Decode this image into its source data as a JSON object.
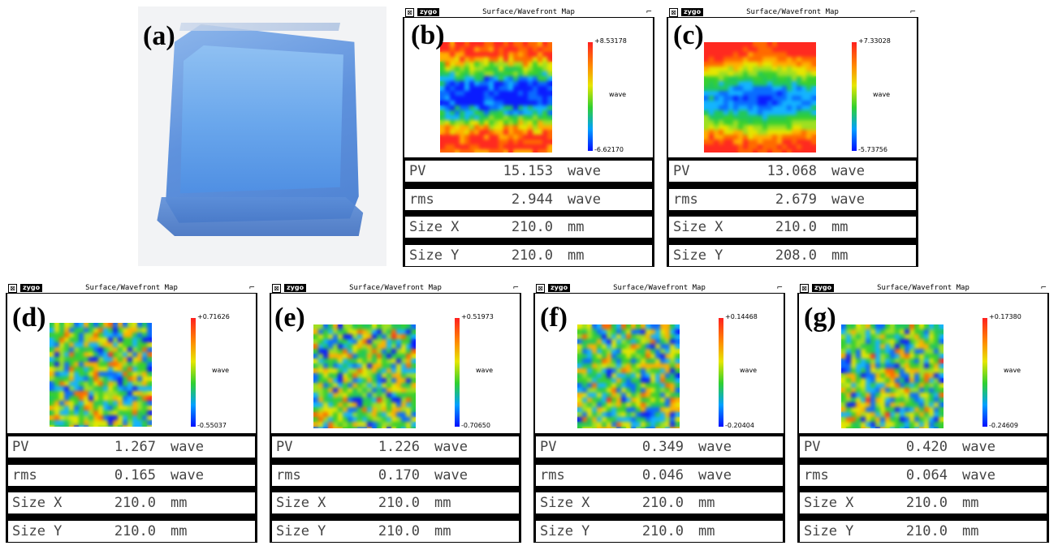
{
  "photo": {
    "label": "(a)"
  },
  "window_chrome": {
    "brand": "zygo",
    "title": "Surface/Wavefront Map",
    "close_glyph": "⊠",
    "resize_glyph": "⌐",
    "scale_unit": "wave"
  },
  "panels": [
    {
      "label": "(b)",
      "scale_max": "+8.53178",
      "scale_min": "-6.62170",
      "pv": {
        "label": "PV",
        "value": "15.153",
        "unit": "wave"
      },
      "rms": {
        "label": "rms",
        "value": "2.944",
        "unit": "wave"
      },
      "size_x": {
        "label": "Size X",
        "value": "210.0",
        "unit": "mm"
      },
      "size_y": {
        "label": "Size Y",
        "value": "210.0",
        "unit": "mm"
      }
    },
    {
      "label": "(c)",
      "scale_max": "+7.33028",
      "scale_min": "-5.73756",
      "pv": {
        "label": "PV",
        "value": "13.068",
        "unit": "wave"
      },
      "rms": {
        "label": "rms",
        "value": "2.679",
        "unit": "wave"
      },
      "size_x": {
        "label": "Size X",
        "value": "210.0",
        "unit": "mm"
      },
      "size_y": {
        "label": "Size Y",
        "value": "208.0",
        "unit": "mm"
      }
    },
    {
      "label": "(d)",
      "scale_max": "+0.71626",
      "scale_min": "-0.55037",
      "pv": {
        "label": "PV",
        "value": "1.267",
        "unit": "wave"
      },
      "rms": {
        "label": "rms",
        "value": "0.165",
        "unit": "wave"
      },
      "size_x": {
        "label": "Size X",
        "value": "210.0",
        "unit": "mm"
      },
      "size_y": {
        "label": "Size Y",
        "value": "210.0",
        "unit": "mm"
      }
    },
    {
      "label": "(e)",
      "scale_max": "+0.51973",
      "scale_min": "-0.70650",
      "pv": {
        "label": "PV",
        "value": "1.226",
        "unit": "wave"
      },
      "rms": {
        "label": "rms",
        "value": "0.170",
        "unit": "wave"
      },
      "size_x": {
        "label": "Size X",
        "value": "210.0",
        "unit": "mm"
      },
      "size_y": {
        "label": "Size Y",
        "value": "210.0",
        "unit": "mm"
      }
    },
    {
      "label": "(f)",
      "scale_max": "+0.14468",
      "scale_min": "-0.20404",
      "pv": {
        "label": "PV",
        "value": "0.349",
        "unit": "wave"
      },
      "rms": {
        "label": "rms",
        "value": "0.046",
        "unit": "wave"
      },
      "size_x": {
        "label": "Size X",
        "value": "210.0",
        "unit": "mm"
      },
      "size_y": {
        "label": "Size Y",
        "value": "210.0",
        "unit": "mm"
      }
    },
    {
      "label": "(g)",
      "scale_max": "+0.17380",
      "scale_min": "-0.24609",
      "pv": {
        "label": "PV",
        "value": "0.420",
        "unit": "wave"
      },
      "rms": {
        "label": "rms",
        "value": "0.064",
        "unit": "wave"
      },
      "size_x": {
        "label": "Size X",
        "value": "210.0",
        "unit": "mm"
      },
      "size_y": {
        "label": "Size Y",
        "value": "210.0",
        "unit": "mm"
      }
    }
  ]
}
